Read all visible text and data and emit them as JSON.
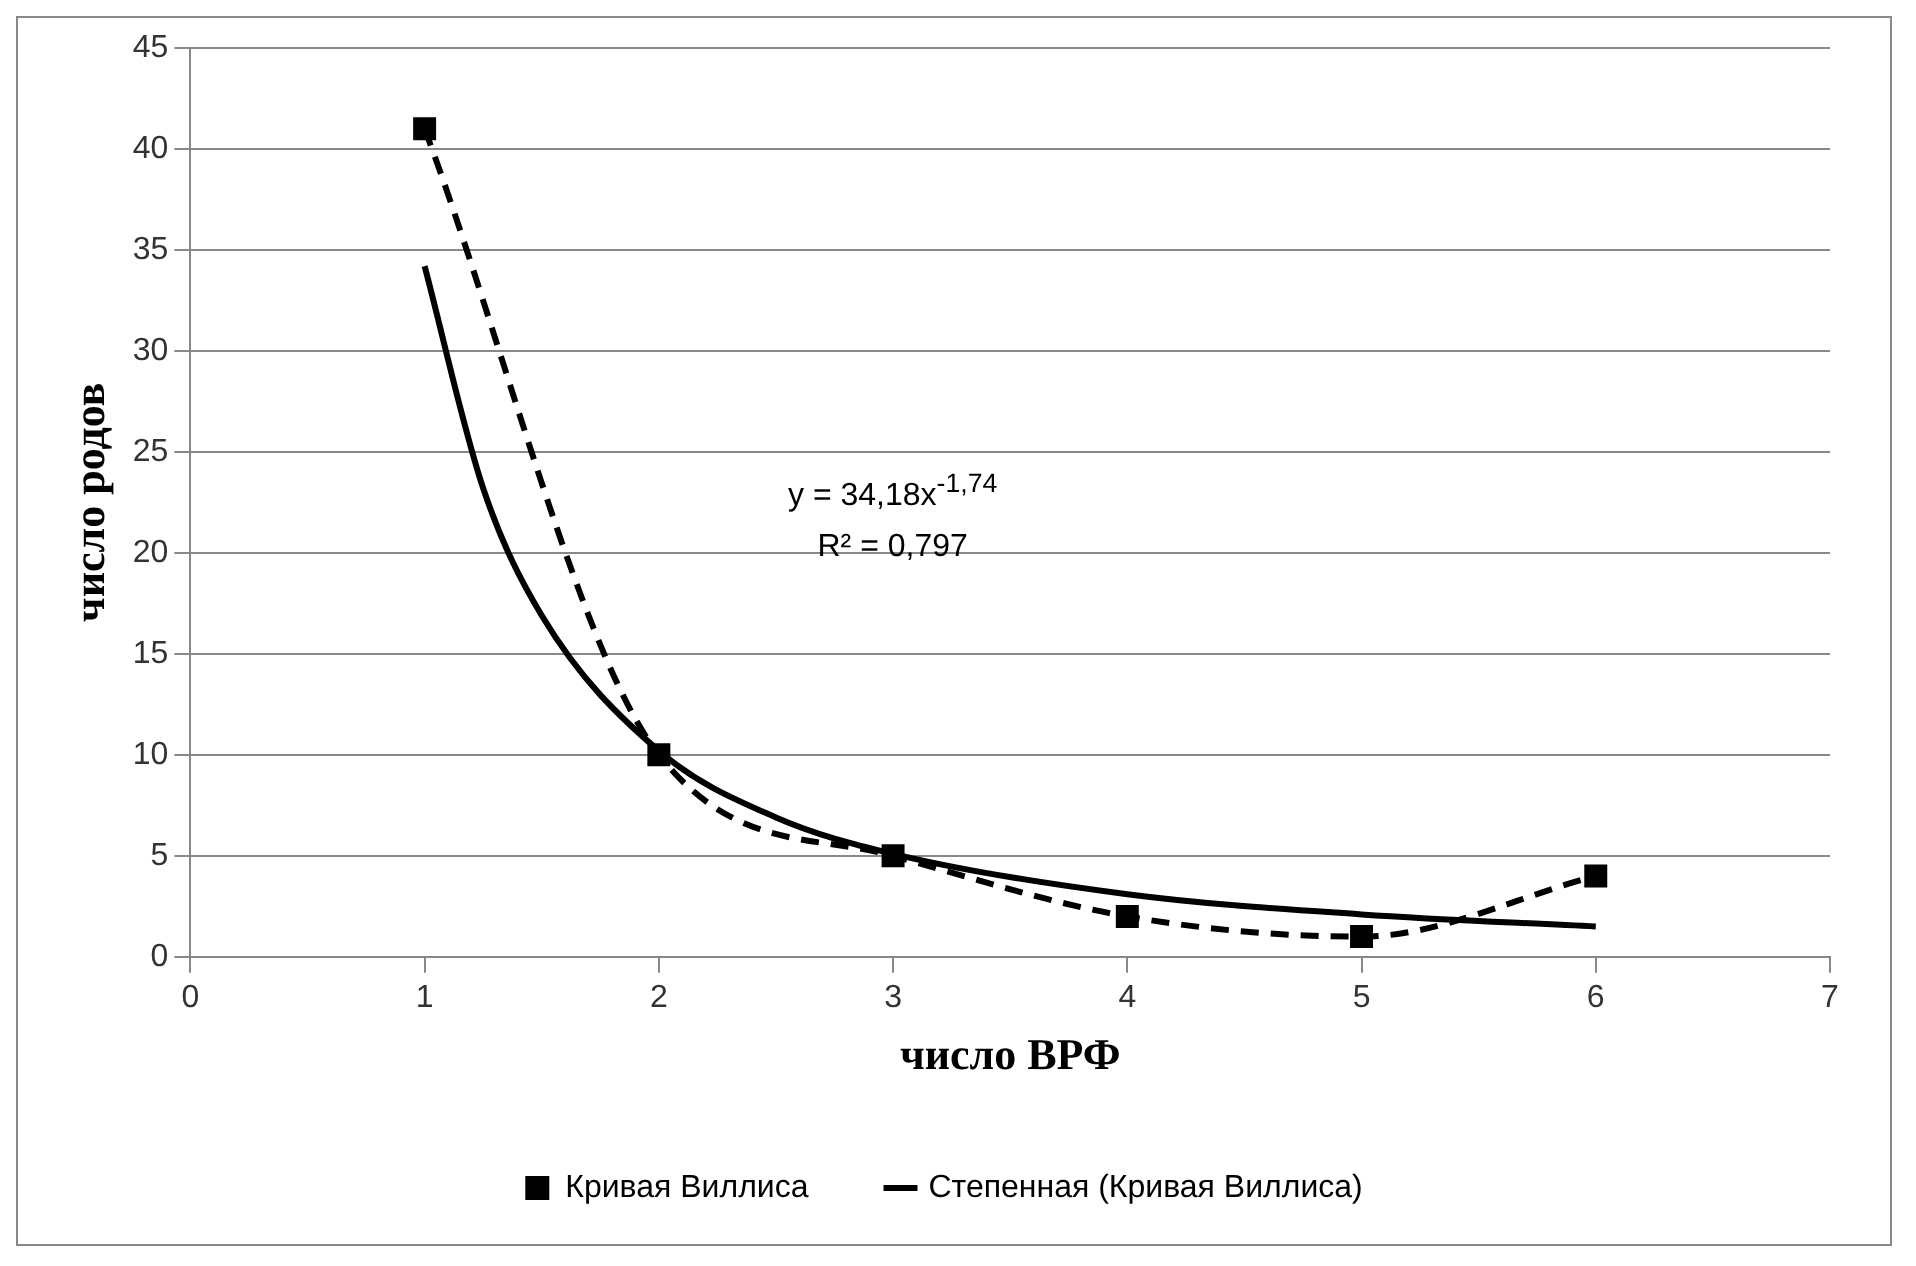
{
  "chart_data": {
    "type": "line",
    "xlabel": "число ВРФ",
    "ylabel": "число родов",
    "x": [
      1,
      2,
      3,
      4,
      5,
      6
    ],
    "series": [
      {
        "name": "Кривая Виллиса",
        "color": "#000000",
        "values": [
          41,
          10,
          5,
          2,
          1,
          4
        ],
        "marker": "square",
        "line_style": "dashed"
      },
      {
        "name": "Степенная (Кривая Виллиса)",
        "color": "#000000",
        "x": [
          1,
          1.25,
          1.5,
          2,
          2.5,
          3,
          4,
          5,
          6
        ],
        "values": [
          34.2,
          23.2,
          16.9,
          10.2,
          6.9,
          5.1,
          3.1,
          2.1,
          1.5
        ],
        "marker": "none",
        "line_style": "solid"
      }
    ],
    "xlim": [
      0,
      7
    ],
    "xticks": [
      0,
      1,
      2,
      3,
      4,
      5,
      6,
      7
    ],
    "ylim": [
      0,
      45
    ],
    "yticks": [
      0,
      5,
      10,
      15,
      20,
      25,
      30,
      35,
      40,
      45
    ],
    "grid": "y",
    "legend": "bottom",
    "annotations": [
      "y = 34,18x$^{-1,74}$",
      "R² = 0,797"
    ]
  }
}
